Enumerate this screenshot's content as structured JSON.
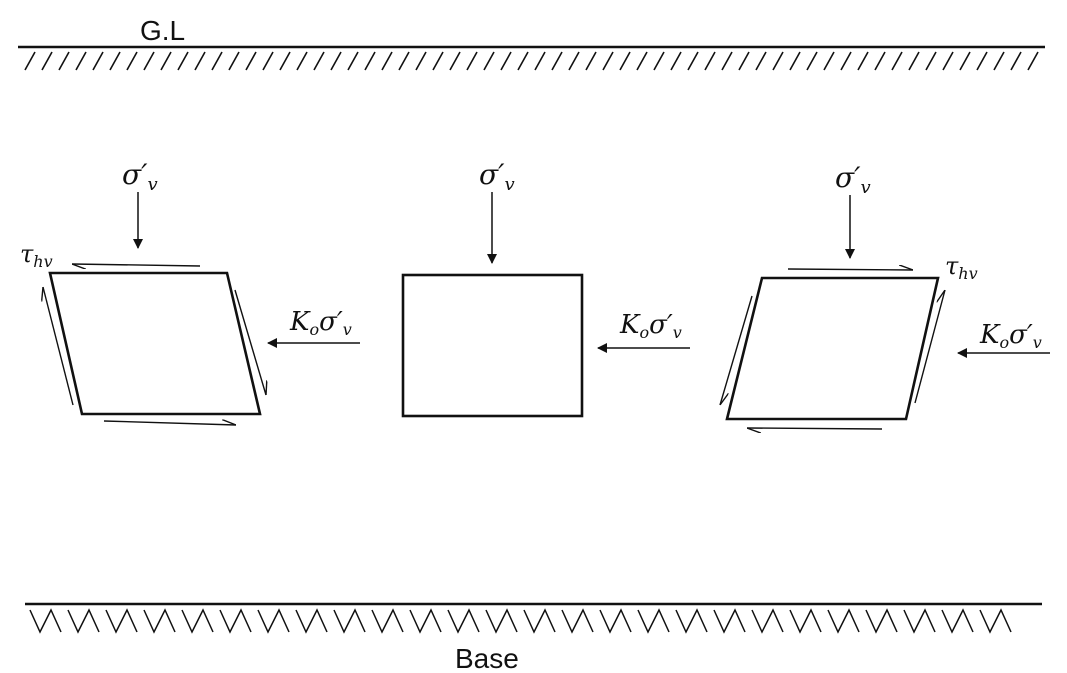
{
  "labels": {
    "ground_level": "G.L",
    "base": "Base",
    "sigma_v": "σ′v",
    "k0_sigma_v": "Koσ′v",
    "tau_hv": "τhv"
  },
  "colors": {
    "ink": "#111111",
    "background": "#ffffff"
  },
  "elements": [
    {
      "id": "left",
      "state": "sheared-left"
    },
    {
      "id": "center",
      "state": "undeformed"
    },
    {
      "id": "right",
      "state": "sheared-right"
    }
  ]
}
